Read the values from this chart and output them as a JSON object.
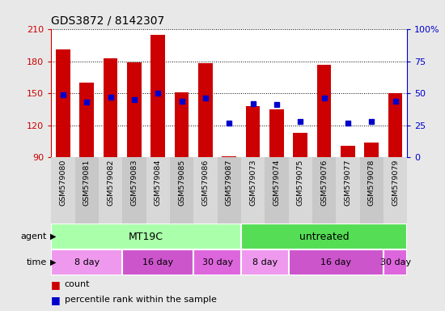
{
  "title": "GDS3872 / 8142307",
  "samples": [
    "GSM579080",
    "GSM579081",
    "GSM579082",
    "GSM579083",
    "GSM579084",
    "GSM579085",
    "GSM579086",
    "GSM579087",
    "GSM579073",
    "GSM579074",
    "GSM579075",
    "GSM579076",
    "GSM579077",
    "GSM579078",
    "GSM579079"
  ],
  "red_values": [
    191,
    160,
    183,
    179,
    205,
    151,
    178,
    91,
    138,
    135,
    113,
    177,
    101,
    104,
    150
  ],
  "blue_values": [
    49,
    43,
    47,
    45,
    50,
    44,
    46,
    27,
    42,
    41,
    28,
    46,
    27,
    28,
    44
  ],
  "ymin": 90,
  "ymax": 210,
  "yticks_left": [
    90,
    120,
    150,
    180,
    210
  ],
  "yticks_right": [
    0,
    25,
    50,
    75,
    100
  ],
  "bar_color": "#cc0000",
  "dot_color": "#0000cc",
  "background_color": "#e8e8e8",
  "plot_bg": "#ffffff",
  "agent_row": [
    {
      "label": "MT19C",
      "start": 0,
      "end": 8,
      "color": "#aaffaa"
    },
    {
      "label": "untreated",
      "start": 8,
      "end": 15,
      "color": "#55dd55"
    }
  ],
  "time_row": [
    {
      "label": "8 day",
      "start": 0,
      "end": 3,
      "color": "#ee99ee"
    },
    {
      "label": "16 day",
      "start": 3,
      "end": 6,
      "color": "#cc55cc"
    },
    {
      "label": "30 day",
      "start": 6,
      "end": 8,
      "color": "#dd66dd"
    },
    {
      "label": "8 day",
      "start": 8,
      "end": 10,
      "color": "#ee99ee"
    },
    {
      "label": "16 day",
      "start": 10,
      "end": 14,
      "color": "#cc55cc"
    },
    {
      "label": "30 day",
      "start": 14,
      "end": 15,
      "color": "#dd66dd"
    }
  ],
  "legend_count_color": "#cc0000",
  "legend_dot_color": "#0000cc",
  "left_tick_color": "#cc0000",
  "right_tick_color": "#0000cc"
}
